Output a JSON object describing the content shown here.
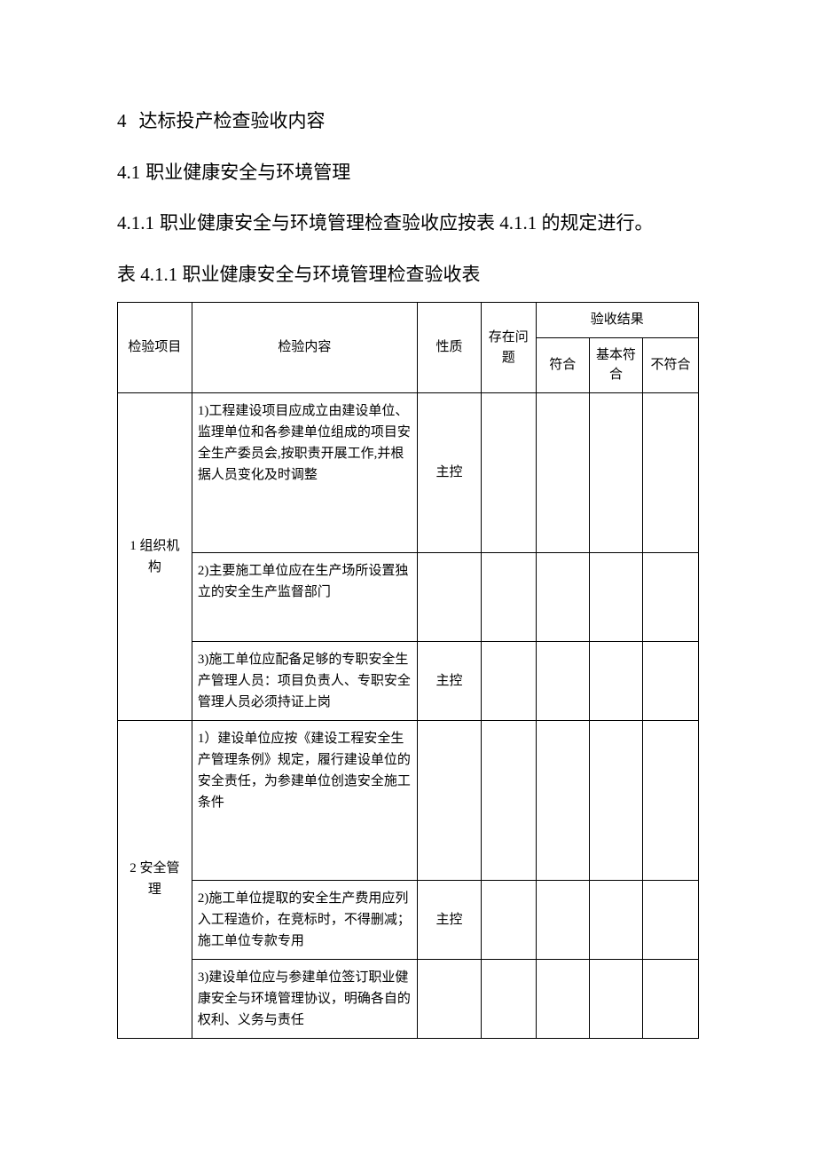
{
  "colors": {
    "background": "#ffffff",
    "text": "#000000",
    "border": "#000000"
  },
  "fonts": {
    "body_family": "SimSun",
    "heading_fontsize": 21,
    "table_fontsize": 15
  },
  "headings": {
    "h4_num": "4",
    "h4_text": "达标投产检查验收内容",
    "h41_num": "4.1",
    "h41_text": "职业健康安全与环境管理",
    "h411_num": "4.1.1",
    "h411_text": "职业健康安全与环境管理检查验收应按表 4.1.1 的规定进行。",
    "caption": "表 4.1.1 职业健康安全与环境管理检查验收表"
  },
  "table": {
    "headers": {
      "item": "检验项目",
      "content": "检验内容",
      "nature": "性质",
      "issues": "存在问题",
      "result": "验收结果",
      "r1": "符合",
      "r2": "基本符合",
      "r3": "不符合"
    },
    "column_widths_pct": [
      12.8,
      38.8,
      11,
      9.4,
      9.2,
      9.2,
      9.6
    ],
    "groups": [
      {
        "label": "1 组织机构",
        "rows": [
          {
            "content": "1)工程建设项目应成立由建设单位、监理单位和各参建单位组成的项目安全生产委员会,按职责开展工作,并根据人员变化及时调整",
            "nature": "主控",
            "issues": "",
            "r1": "",
            "r2": "",
            "r3": "",
            "height_class": "tall-row"
          },
          {
            "content": "2)主要施工单位应在生产场所设置独立的安全生产监督部门",
            "nature": "",
            "issues": "",
            "r1": "",
            "r2": "",
            "r3": "",
            "height_class": "med-row"
          },
          {
            "content": "3)施工单位应配备足够的专职安全生产管理人员：项目负责人、专职安全管理人员必须持证上岗",
            "nature": "主控",
            "issues": "",
            "r1": "",
            "r2": "",
            "r3": "",
            "height_class": ""
          }
        ]
      },
      {
        "label": "2 安全管理",
        "rows": [
          {
            "content": "1）建设单位应按《建设工程安全生产管理条例》规定，履行建设单位的安全责任，为参建单位创造安全施工条件",
            "nature": "",
            "issues": "",
            "r1": "",
            "r2": "",
            "r3": "",
            "height_class": "tall-row"
          },
          {
            "content": "2)施工单位提取的安全生产费用应列入工程造价，在竞标时，不得删减；施工单位专款专用",
            "nature": "主控",
            "issues": "",
            "r1": "",
            "r2": "",
            "r3": "",
            "height_class": ""
          },
          {
            "content": "3)建设单位应与参建单位签订职业健康安全与环境管理协议，明确各自的权利、义务与责任",
            "nature": "",
            "issues": "",
            "r1": "",
            "r2": "",
            "r3": "",
            "height_class": ""
          }
        ]
      }
    ]
  }
}
